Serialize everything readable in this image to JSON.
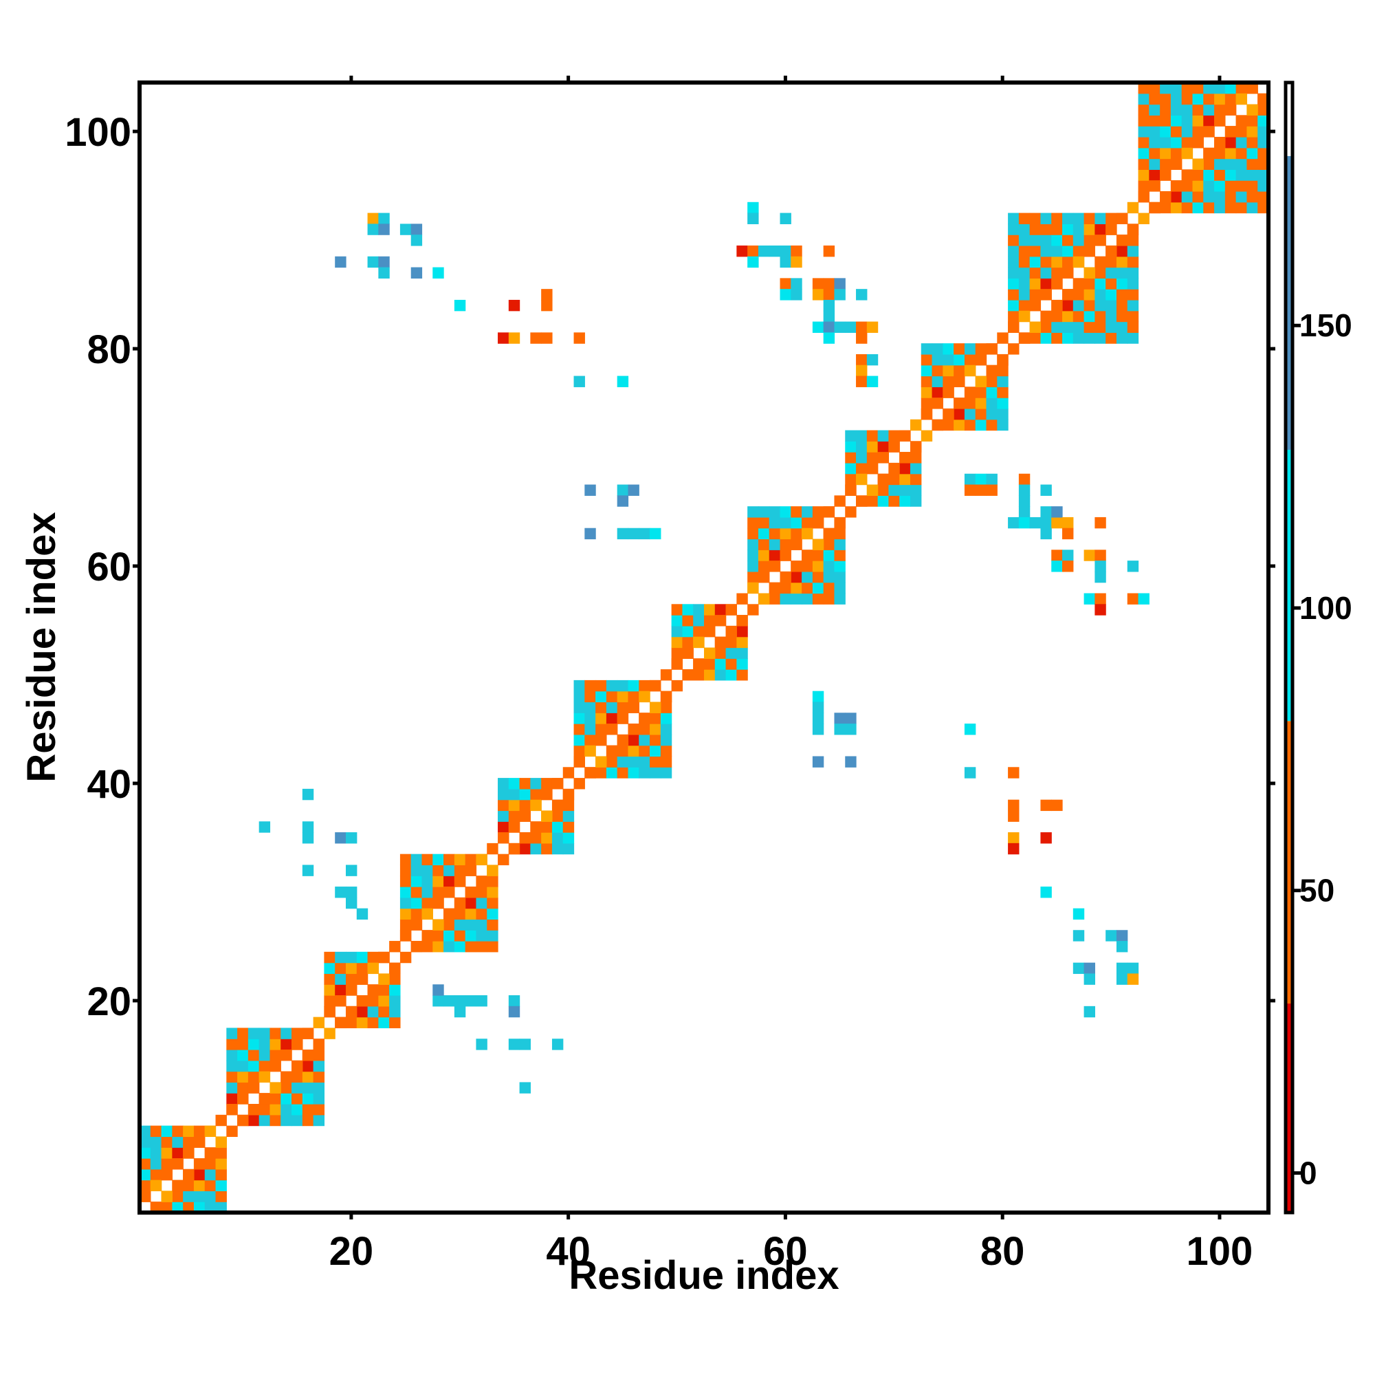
{
  "chart_data": {
    "type": "heatmap",
    "title": "",
    "xlabel": "Residue index",
    "ylabel": "Residue index",
    "xlim": [
      1,
      104
    ],
    "ylim": [
      1,
      104
    ],
    "x_ticks": [
      "20",
      "40",
      "60",
      "80",
      "100"
    ],
    "y_ticks": [
      "20",
      "40",
      "60",
      "80",
      "100"
    ],
    "grid": false,
    "legend": "colorbar-right",
    "colorbar": {
      "ticks": [
        "0",
        "50",
        "100",
        "150"
      ],
      "range": [
        -7,
        193
      ],
      "bands": [
        {
          "from": -7,
          "to": 30,
          "color": "#e00000"
        },
        {
          "from": 30,
          "to": 80,
          "color": "#ff6a00"
        },
        {
          "from": 80,
          "to": 128,
          "color": "#00e5ee"
        },
        {
          "from": 128,
          "to": 180,
          "color": "#4f8fc0"
        },
        {
          "from": 180,
          "to": 193,
          "color": "#ffffff"
        }
      ]
    },
    "colors": {
      "red": "#e41a00",
      "orange": "#ff6a00",
      "light_orange": "#ffa500",
      "cyan": "#00e5ee",
      "teal": "#1ec8dc",
      "steel_blue": "#4a90c4"
    },
    "backbone_ranges": [
      {
        "start": 1,
        "end": 8
      },
      {
        "start": 9,
        "end": 17
      },
      {
        "start": 18,
        "end": 24
      },
      {
        "start": 25,
        "end": 33
      },
      {
        "start": 34,
        "end": 40
      },
      {
        "start": 41,
        "end": 49
      },
      {
        "start": 50,
        "end": 56
      },
      {
        "start": 57,
        "end": 65
      },
      {
        "start": 66,
        "end": 72
      },
      {
        "start": 73,
        "end": 80
      },
      {
        "start": 81,
        "end": 92
      },
      {
        "start": 93,
        "end": 104
      }
    ],
    "off_diagonal_contacts": [
      {
        "x": 12,
        "y": 36,
        "v": 110
      },
      {
        "x": 16,
        "y": 39,
        "v": 110
      },
      {
        "x": 16,
        "y": 36,
        "v": 110
      },
      {
        "x": 16,
        "y": 35,
        "v": 110
      },
      {
        "x": 16,
        "y": 32,
        "v": 110
      },
      {
        "x": 19,
        "y": 35,
        "v": 140
      },
      {
        "x": 20,
        "y": 35,
        "v": 100
      },
      {
        "x": 20,
        "y": 32,
        "v": 110
      },
      {
        "x": 19,
        "y": 30,
        "v": 100
      },
      {
        "x": 20,
        "y": 30,
        "v": 110
      },
      {
        "x": 20,
        "y": 29,
        "v": 110
      },
      {
        "x": 21,
        "y": 28,
        "v": 110
      },
      {
        "x": 28,
        "y": 20,
        "v": 110
      },
      {
        "x": 29,
        "y": 20,
        "v": 110
      },
      {
        "x": 30,
        "y": 20,
        "v": 110
      },
      {
        "x": 30,
        "y": 19,
        "v": 110
      },
      {
        "x": 31,
        "y": 20,
        "v": 110
      },
      {
        "x": 32,
        "y": 20,
        "v": 110
      },
      {
        "x": 35,
        "y": 20,
        "v": 110
      },
      {
        "x": 35,
        "y": 19,
        "v": 140
      },
      {
        "x": 28,
        "y": 21,
        "v": 140
      },
      {
        "x": 32,
        "y": 16,
        "v": 110
      },
      {
        "x": 35,
        "y": 16,
        "v": 110
      },
      {
        "x": 36,
        "y": 16,
        "v": 110
      },
      {
        "x": 39,
        "y": 16,
        "v": 110
      },
      {
        "x": 36,
        "y": 12,
        "v": 110
      },
      {
        "x": 22,
        "y": 92,
        "v": 70
      },
      {
        "x": 23,
        "y": 92,
        "v": 110
      },
      {
        "x": 22,
        "y": 91,
        "v": 110
      },
      {
        "x": 23,
        "y": 91,
        "v": 140
      },
      {
        "x": 25,
        "y": 91,
        "v": 110
      },
      {
        "x": 26,
        "y": 91,
        "v": 140
      },
      {
        "x": 26,
        "y": 90,
        "v": 110
      },
      {
        "x": 19,
        "y": 88,
        "v": 140
      },
      {
        "x": 22,
        "y": 88,
        "v": 110
      },
      {
        "x": 23,
        "y": 88,
        "v": 140
      },
      {
        "x": 23,
        "y": 87,
        "v": 110
      },
      {
        "x": 26,
        "y": 87,
        "v": 140
      },
      {
        "x": 28,
        "y": 87,
        "v": 95
      },
      {
        "x": 30,
        "y": 84,
        "v": 95
      },
      {
        "x": 35,
        "y": 84,
        "v": 10
      },
      {
        "x": 38,
        "y": 85,
        "v": 60
      },
      {
        "x": 38,
        "y": 84,
        "v": 60
      },
      {
        "x": 34,
        "y": 81,
        "v": 10
      },
      {
        "x": 35,
        "y": 81,
        "v": 70
      },
      {
        "x": 37,
        "y": 81,
        "v": 60
      },
      {
        "x": 38,
        "y": 81,
        "v": 60
      },
      {
        "x": 41,
        "y": 81,
        "v": 60
      },
      {
        "x": 41,
        "y": 77,
        "v": 110
      },
      {
        "x": 45,
        "y": 77,
        "v": 95
      },
      {
        "x": 42,
        "y": 67,
        "v": 140
      },
      {
        "x": 45,
        "y": 67,
        "v": 110
      },
      {
        "x": 46,
        "y": 67,
        "v": 140
      },
      {
        "x": 45,
        "y": 66,
        "v": 140
      },
      {
        "x": 42,
        "y": 63,
        "v": 140
      },
      {
        "x": 45,
        "y": 63,
        "v": 110
      },
      {
        "x": 46,
        "y": 63,
        "v": 110
      },
      {
        "x": 47,
        "y": 63,
        "v": 110
      },
      {
        "x": 48,
        "y": 63,
        "v": 95
      },
      {
        "x": 57,
        "y": 93,
        "v": 95
      },
      {
        "x": 57,
        "y": 92,
        "v": 110
      },
      {
        "x": 60,
        "y": 92,
        "v": 110
      },
      {
        "x": 56,
        "y": 89,
        "v": 10
      },
      {
        "x": 57,
        "y": 89,
        "v": 60
      },
      {
        "x": 58,
        "y": 89,
        "v": 110
      },
      {
        "x": 59,
        "y": 89,
        "v": 110
      },
      {
        "x": 60,
        "y": 89,
        "v": 110
      },
      {
        "x": 61,
        "y": 89,
        "v": 60
      },
      {
        "x": 57,
        "y": 88,
        "v": 95
      },
      {
        "x": 60,
        "y": 88,
        "v": 110
      },
      {
        "x": 61,
        "y": 88,
        "v": 70
      },
      {
        "x": 64,
        "y": 89,
        "v": 60
      },
      {
        "x": 60,
        "y": 86,
        "v": 60
      },
      {
        "x": 61,
        "y": 86,
        "v": 110
      },
      {
        "x": 60,
        "y": 85,
        "v": 95
      },
      {
        "x": 61,
        "y": 85,
        "v": 110
      },
      {
        "x": 63,
        "y": 86,
        "v": 60
      },
      {
        "x": 64,
        "y": 86,
        "v": 60
      },
      {
        "x": 65,
        "y": 86,
        "v": 140
      },
      {
        "x": 63,
        "y": 85,
        "v": 70
      },
      {
        "x": 64,
        "y": 85,
        "v": 60
      },
      {
        "x": 65,
        "y": 85,
        "v": 110
      },
      {
        "x": 67,
        "y": 85,
        "v": 110
      },
      {
        "x": 64,
        "y": 84,
        "v": 110
      },
      {
        "x": 64,
        "y": 83,
        "v": 110
      },
      {
        "x": 63,
        "y": 82,
        "v": 95
      },
      {
        "x": 64,
        "y": 82,
        "v": 140
      },
      {
        "x": 65,
        "y": 82,
        "v": 110
      },
      {
        "x": 66,
        "y": 82,
        "v": 110
      },
      {
        "x": 67,
        "y": 82,
        "v": 60
      },
      {
        "x": 68,
        "y": 82,
        "v": 70
      },
      {
        "x": 64,
        "y": 81,
        "v": 95
      },
      {
        "x": 67,
        "y": 81,
        "v": 60
      },
      {
        "x": 67,
        "y": 79,
        "v": 60
      },
      {
        "x": 68,
        "y": 79,
        "v": 110
      },
      {
        "x": 67,
        "y": 78,
        "v": 70
      },
      {
        "x": 67,
        "y": 77,
        "v": 60
      },
      {
        "x": 68,
        "y": 77,
        "v": 95
      },
      {
        "x": 63,
        "y": 48,
        "v": 95
      },
      {
        "x": 63,
        "y": 47,
        "v": 110
      },
      {
        "x": 63,
        "y": 46,
        "v": 110
      },
      {
        "x": 65,
        "y": 46,
        "v": 140
      },
      {
        "x": 66,
        "y": 46,
        "v": 140
      },
      {
        "x": 63,
        "y": 45,
        "v": 110
      },
      {
        "x": 65,
        "y": 45,
        "v": 110
      },
      {
        "x": 66,
        "y": 45,
        "v": 110
      },
      {
        "x": 63,
        "y": 42,
        "v": 140
      },
      {
        "x": 66,
        "y": 42,
        "v": 140
      },
      {
        "x": 77,
        "y": 68,
        "v": 110
      },
      {
        "x": 78,
        "y": 68,
        "v": 95
      },
      {
        "x": 79,
        "y": 68,
        "v": 110
      },
      {
        "x": 77,
        "y": 67,
        "v": 60
      },
      {
        "x": 78,
        "y": 67,
        "v": 60
      },
      {
        "x": 79,
        "y": 67,
        "v": 60
      },
      {
        "x": 82,
        "y": 68,
        "v": 60
      },
      {
        "x": 82,
        "y": 67,
        "v": 110
      },
      {
        "x": 82,
        "y": 66,
        "v": 110
      },
      {
        "x": 84,
        "y": 67,
        "v": 110
      },
      {
        "x": 82,
        "y": 65,
        "v": 110
      },
      {
        "x": 81,
        "y": 64,
        "v": 110
      },
      {
        "x": 82,
        "y": 64,
        "v": 95
      },
      {
        "x": 83,
        "y": 64,
        "v": 110
      },
      {
        "x": 84,
        "y": 64,
        "v": 110
      },
      {
        "x": 85,
        "y": 64,
        "v": 70
      },
      {
        "x": 84,
        "y": 65,
        "v": 110
      },
      {
        "x": 85,
        "y": 65,
        "v": 140
      },
      {
        "x": 86,
        "y": 64,
        "v": 70
      },
      {
        "x": 86,
        "y": 63,
        "v": 60
      },
      {
        "x": 89,
        "y": 64,
        "v": 60
      },
      {
        "x": 84,
        "y": 63,
        "v": 110
      },
      {
        "x": 85,
        "y": 61,
        "v": 60
      },
      {
        "x": 86,
        "y": 61,
        "v": 110
      },
      {
        "x": 85,
        "y": 60,
        "v": 95
      },
      {
        "x": 86,
        "y": 60,
        "v": 60
      },
      {
        "x": 88,
        "y": 61,
        "v": 70
      },
      {
        "x": 89,
        "y": 61,
        "v": 60
      },
      {
        "x": 89,
        "y": 60,
        "v": 110
      },
      {
        "x": 89,
        "y": 59,
        "v": 110
      },
      {
        "x": 92,
        "y": 60,
        "v": 110
      },
      {
        "x": 88,
        "y": 57,
        "v": 95
      },
      {
        "x": 89,
        "y": 57,
        "v": 60
      },
      {
        "x": 89,
        "y": 56,
        "v": 10
      },
      {
        "x": 92,
        "y": 57,
        "v": 60
      },
      {
        "x": 93,
        "y": 57,
        "v": 95
      },
      {
        "x": 77,
        "y": 45,
        "v": 95
      },
      {
        "x": 77,
        "y": 41,
        "v": 110
      },
      {
        "x": 81,
        "y": 41,
        "v": 60
      },
      {
        "x": 81,
        "y": 38,
        "v": 60
      },
      {
        "x": 81,
        "y": 37,
        "v": 60
      },
      {
        "x": 84,
        "y": 38,
        "v": 60
      },
      {
        "x": 85,
        "y": 38,
        "v": 60
      },
      {
        "x": 81,
        "y": 35,
        "v": 70
      },
      {
        "x": 81,
        "y": 34,
        "v": 10
      },
      {
        "x": 84,
        "y": 35,
        "v": 10
      },
      {
        "x": 84,
        "y": 30,
        "v": 95
      },
      {
        "x": 87,
        "y": 28,
        "v": 95
      },
      {
        "x": 87,
        "y": 26,
        "v": 110
      },
      {
        "x": 90,
        "y": 26,
        "v": 110
      },
      {
        "x": 91,
        "y": 26,
        "v": 140
      },
      {
        "x": 91,
        "y": 25,
        "v": 110
      },
      {
        "x": 87,
        "y": 23,
        "v": 110
      },
      {
        "x": 88,
        "y": 23,
        "v": 140
      },
      {
        "x": 88,
        "y": 22,
        "v": 110
      },
      {
        "x": 91,
        "y": 23,
        "v": 110
      },
      {
        "x": 92,
        "y": 23,
        "v": 110
      },
      {
        "x": 91,
        "y": 22,
        "v": 110
      },
      {
        "x": 92,
        "y": 22,
        "v": 70
      },
      {
        "x": 88,
        "y": 19,
        "v": 110
      }
    ]
  }
}
